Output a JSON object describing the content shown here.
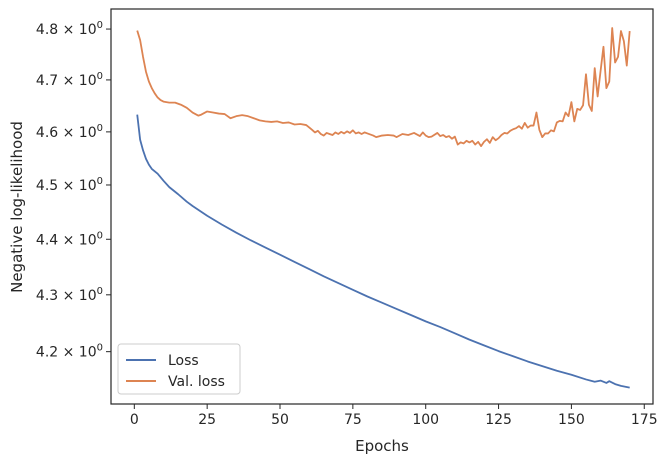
{
  "chart_data": {
    "type": "line",
    "xlabel": "Epochs",
    "ylabel": "Negative log-likelihood",
    "xlim": [
      -8,
      178
    ],
    "ylim": [
      4.11,
      4.84
    ],
    "yscale": "log",
    "grid": false,
    "legend_position": "lower-left",
    "x_ticks": [
      0,
      25,
      50,
      75,
      100,
      125,
      150,
      175
    ],
    "x_tick_labels": [
      "0",
      "25",
      "50",
      "75",
      "100",
      "125",
      "150",
      "175"
    ],
    "y_ticks": [
      4.2,
      4.3,
      4.4,
      4.5,
      4.6,
      4.7,
      4.8
    ],
    "y_tick_labels": [
      "4.2",
      "4.3",
      "4.4",
      "4.5",
      "4.6",
      "4.7",
      "4.8"
    ],
    "y_tick_exponent": "0",
    "series": [
      {
        "name": "Loss",
        "color": "#4c72b0",
        "points": [
          [
            1,
            4.633
          ],
          [
            2,
            4.585
          ],
          [
            3,
            4.565
          ],
          [
            4,
            4.549
          ],
          [
            5,
            4.538
          ],
          [
            6,
            4.53
          ],
          [
            8,
            4.521
          ],
          [
            10,
            4.508
          ],
          [
            12,
            4.496
          ],
          [
            15,
            4.483
          ],
          [
            18,
            4.469
          ],
          [
            20,
            4.461
          ],
          [
            25,
            4.443
          ],
          [
            30,
            4.427
          ],
          [
            35,
            4.412
          ],
          [
            40,
            4.398
          ],
          [
            45,
            4.385
          ],
          [
            50,
            4.372
          ],
          [
            55,
            4.359
          ],
          [
            60,
            4.346
          ],
          [
            65,
            4.333
          ],
          [
            70,
            4.321
          ],
          [
            75,
            4.309
          ],
          [
            80,
            4.297
          ],
          [
            85,
            4.286
          ],
          [
            90,
            4.275
          ],
          [
            95,
            4.264
          ],
          [
            100,
            4.253
          ],
          [
            105,
            4.243
          ],
          [
            110,
            4.232
          ],
          [
            115,
            4.221
          ],
          [
            120,
            4.211
          ],
          [
            125,
            4.201
          ],
          [
            130,
            4.192
          ],
          [
            135,
            4.183
          ],
          [
            140,
            4.175
          ],
          [
            145,
            4.167
          ],
          [
            150,
            4.16
          ],
          [
            155,
            4.152
          ],
          [
            158,
            4.148
          ],
          [
            160,
            4.15
          ],
          [
            162,
            4.146
          ],
          [
            163,
            4.149
          ],
          [
            165,
            4.144
          ],
          [
            167,
            4.141
          ],
          [
            170,
            4.138
          ]
        ]
      },
      {
        "name": "Val. loss",
        "color": "#dd8452",
        "points": [
          [
            1,
            4.797
          ],
          [
            2,
            4.778
          ],
          [
            3,
            4.745
          ],
          [
            4,
            4.716
          ],
          [
            5,
            4.697
          ],
          [
            6,
            4.684
          ],
          [
            7,
            4.674
          ],
          [
            8,
            4.666
          ],
          [
            9,
            4.661
          ],
          [
            10,
            4.658
          ],
          [
            12,
            4.656
          ],
          [
            14,
            4.656
          ],
          [
            16,
            4.652
          ],
          [
            18,
            4.646
          ],
          [
            20,
            4.637
          ],
          [
            22,
            4.631
          ],
          [
            23,
            4.633
          ],
          [
            25,
            4.639
          ],
          [
            27,
            4.637
          ],
          [
            29,
            4.635
          ],
          [
            31,
            4.634
          ],
          [
            33,
            4.626
          ],
          [
            35,
            4.63
          ],
          [
            37,
            4.632
          ],
          [
            39,
            4.63
          ],
          [
            41,
            4.626
          ],
          [
            43,
            4.622
          ],
          [
            45,
            4.62
          ],
          [
            47,
            4.619
          ],
          [
            49,
            4.62
          ],
          [
            51,
            4.617
          ],
          [
            53,
            4.618
          ],
          [
            55,
            4.614
          ],
          [
            57,
            4.615
          ],
          [
            59,
            4.613
          ],
          [
            61,
            4.604
          ],
          [
            62,
            4.599
          ],
          [
            63,
            4.602
          ],
          [
            64,
            4.596
          ],
          [
            65,
            4.593
          ],
          [
            66,
            4.598
          ],
          [
            67,
            4.596
          ],
          [
            68,
            4.594
          ],
          [
            69,
            4.599
          ],
          [
            70,
            4.596
          ],
          [
            71,
            4.6
          ],
          [
            72,
            4.597
          ],
          [
            73,
            4.601
          ],
          [
            74,
            4.598
          ],
          [
            75,
            4.603
          ],
          [
            76,
            4.597
          ],
          [
            77,
            4.599
          ],
          [
            78,
            4.596
          ],
          [
            79,
            4.599
          ],
          [
            80,
            4.597
          ],
          [
            82,
            4.593
          ],
          [
            83,
            4.59
          ],
          [
            85,
            4.593
          ],
          [
            87,
            4.594
          ],
          [
            89,
            4.593
          ],
          [
            90,
            4.59
          ],
          [
            92,
            4.596
          ],
          [
            94,
            4.594
          ],
          [
            96,
            4.598
          ],
          [
            98,
            4.592
          ],
          [
            99,
            4.599
          ],
          [
            100,
            4.593
          ],
          [
            101,
            4.59
          ],
          [
            102,
            4.591
          ],
          [
            104,
            4.598
          ],
          [
            105,
            4.592
          ],
          [
            106,
            4.594
          ],
          [
            107,
            4.59
          ],
          [
            108,
            4.592
          ],
          [
            109,
            4.587
          ],
          [
            110,
            4.591
          ],
          [
            111,
            4.576
          ],
          [
            112,
            4.58
          ],
          [
            113,
            4.578
          ],
          [
            114,
            4.583
          ],
          [
            115,
            4.58
          ],
          [
            116,
            4.583
          ],
          [
            117,
            4.576
          ],
          [
            118,
            4.581
          ],
          [
            119,
            4.573
          ],
          [
            120,
            4.581
          ],
          [
            121,
            4.586
          ],
          [
            122,
            4.579
          ],
          [
            123,
            4.59
          ],
          [
            124,
            4.584
          ],
          [
            125,
            4.588
          ],
          [
            126,
            4.594
          ],
          [
            127,
            4.598
          ],
          [
            128,
            4.597
          ],
          [
            129,
            4.602
          ],
          [
            130,
            4.605
          ],
          [
            131,
            4.607
          ],
          [
            132,
            4.611
          ],
          [
            133,
            4.606
          ],
          [
            134,
            4.617
          ],
          [
            135,
            4.608
          ],
          [
            136,
            4.612
          ],
          [
            137,
            4.612
          ],
          [
            138,
            4.637
          ],
          [
            139,
            4.604
          ],
          [
            140,
            4.59
          ],
          [
            141,
            4.597
          ],
          [
            142,
            4.597
          ],
          [
            143,
            4.603
          ],
          [
            144,
            4.601
          ],
          [
            145,
            4.618
          ],
          [
            146,
            4.621
          ],
          [
            147,
            4.62
          ],
          [
            148,
            4.637
          ],
          [
            149,
            4.63
          ],
          [
            150,
            4.657
          ],
          [
            151,
            4.62
          ],
          [
            152,
            4.644
          ],
          [
            153,
            4.642
          ],
          [
            154,
            4.651
          ],
          [
            155,
            4.711
          ],
          [
            156,
            4.652
          ],
          [
            157,
            4.64
          ],
          [
            158,
            4.723
          ],
          [
            159,
            4.668
          ],
          [
            160,
            4.717
          ],
          [
            161,
            4.765
          ],
          [
            162,
            4.684
          ],
          [
            163,
            4.697
          ],
          [
            164,
            4.802
          ],
          [
            165,
            4.734
          ],
          [
            166,
            4.745
          ],
          [
            167,
            4.796
          ],
          [
            168,
            4.776
          ],
          [
            169,
            4.728
          ],
          [
            170,
            4.796
          ]
        ]
      }
    ]
  }
}
